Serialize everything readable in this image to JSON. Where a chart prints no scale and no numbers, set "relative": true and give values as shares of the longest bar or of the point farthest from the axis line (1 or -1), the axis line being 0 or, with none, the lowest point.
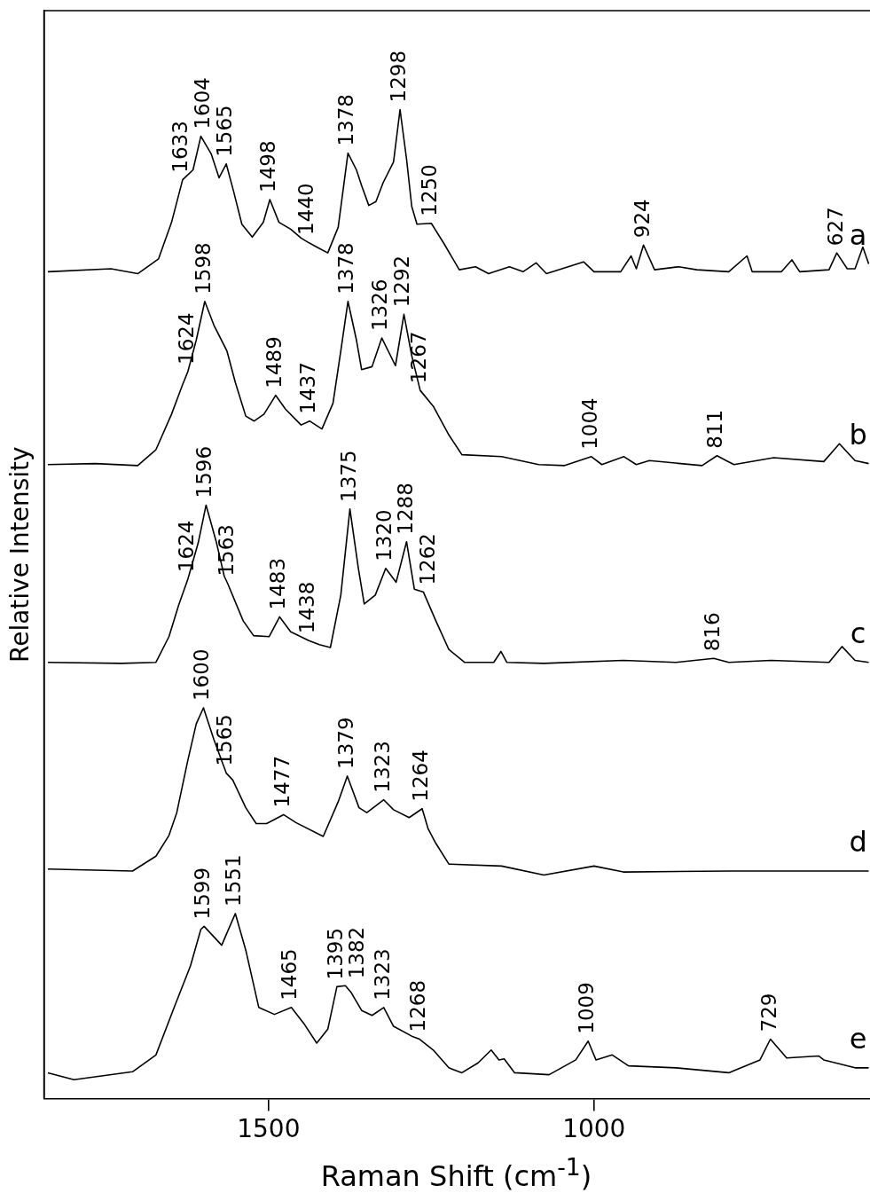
{
  "chart_data": {
    "type": "line",
    "xlabel": "Raman Shift (cm$^{-1}$)",
    "ylabel": "Relative Intensity",
    "relative": true,
    "xlim": [
      1845,
      576
    ],
    "xticks": [
      1500,
      1000
    ],
    "series": [
      {
        "name": "a",
        "color": "#000000",
        "x": [
          1839,
          1742,
          1701,
          1669,
          1649,
          1632,
          1616,
          1604,
          1588,
          1576,
          1565,
          1554,
          1541,
          1525,
          1508,
          1498,
          1484,
          1466,
          1450,
          1440,
          1426,
          1409,
          1393,
          1378,
          1365,
          1357,
          1346,
          1335,
          1324,
          1308,
          1298,
          1288,
          1280,
          1272,
          1250,
          1231,
          1207,
          1182,
          1162,
          1130,
          1109,
          1089,
          1073,
          1016,
          1000,
          959,
          943,
          935,
          924,
          907,
          870,
          842,
          793,
          765,
          757,
          712,
          696,
          684,
          639,
          627,
          611,
          599,
          587,
          578
        ],
        "values": [
          0.836,
          0.839,
          0.834,
          0.849,
          0.886,
          0.929,
          0.939,
          0.973,
          0.955,
          0.931,
          0.945,
          0.918,
          0.884,
          0.871,
          0.886,
          0.909,
          0.886,
          0.879,
          0.87,
          0.866,
          0.861,
          0.855,
          0.881,
          0.956,
          0.939,
          0.923,
          0.903,
          0.907,
          0.926,
          0.947,
          1.0,
          0.95,
          0.902,
          0.884,
          0.885,
          0.865,
          0.838,
          0.841,
          0.834,
          0.841,
          0.836,
          0.845,
          0.834,
          0.846,
          0.836,
          0.836,
          0.852,
          0.839,
          0.863,
          0.838,
          0.841,
          0.838,
          0.836,
          0.852,
          0.836,
          0.836,
          0.848,
          0.836,
          0.838,
          0.855,
          0.839,
          0.839,
          0.861,
          0.844
        ]
      },
      {
        "name": "b",
        "color": "#000000",
        "x": [
          1839,
          1766,
          1701,
          1673,
          1649,
          1632,
          1624,
          1611,
          1598,
          1584,
          1564,
          1551,
          1535,
          1522,
          1507,
          1489,
          1474,
          1450,
          1437,
          1418,
          1401,
          1389,
          1378,
          1365,
          1357,
          1341,
          1326,
          1305,
          1292,
          1280,
          1267,
          1247,
          1223,
          1203,
          1142,
          1085,
          1045,
          1004,
          988,
          954,
          935,
          915,
          834,
          811,
          797,
          785,
          724,
          647,
          623,
          599,
          578
        ],
        "values": [
          0.641,
          0.642,
          0.64,
          0.656,
          0.692,
          0.722,
          0.735,
          0.767,
          0.806,
          0.782,
          0.756,
          0.724,
          0.69,
          0.685,
          0.692,
          0.711,
          0.697,
          0.681,
          0.685,
          0.677,
          0.703,
          0.756,
          0.806,
          0.767,
          0.737,
          0.74,
          0.769,
          0.741,
          0.793,
          0.751,
          0.716,
          0.7,
          0.671,
          0.651,
          0.649,
          0.641,
          0.64,
          0.649,
          0.641,
          0.649,
          0.641,
          0.645,
          0.64,
          0.65,
          0.645,
          0.641,
          0.648,
          0.644,
          0.662,
          0.645,
          0.642
        ]
      },
      {
        "name": "c",
        "color": "#000000",
        "x": [
          1839,
          1726,
          1673,
          1653,
          1638,
          1624,
          1608,
          1596,
          1580,
          1568,
          1563,
          1539,
          1523,
          1499,
          1483,
          1466,
          1438,
          1422,
          1405,
          1389,
          1375,
          1362,
          1353,
          1336,
          1320,
          1304,
          1288,
          1276,
          1262,
          1243,
          1223,
          1199,
          1154,
          1143,
          1134,
          1077,
          955,
          874,
          816,
          793,
          728,
          639,
          619,
          599,
          578
        ],
        "values": [
          0.441,
          0.44,
          0.441,
          0.467,
          0.499,
          0.525,
          0.562,
          0.6,
          0.562,
          0.528,
          0.521,
          0.483,
          0.468,
          0.467,
          0.487,
          0.472,
          0.463,
          0.459,
          0.456,
          0.509,
          0.596,
          0.536,
          0.5,
          0.509,
          0.536,
          0.522,
          0.563,
          0.515,
          0.512,
          0.483,
          0.454,
          0.441,
          0.441,
          0.452,
          0.441,
          0.44,
          0.443,
          0.441,
          0.445,
          0.441,
          0.443,
          0.441,
          0.457,
          0.443,
          0.441
        ]
      },
      {
        "name": "d",
        "color": "#000000",
        "x": [
          1839,
          1709,
          1673,
          1653,
          1641,
          1624,
          1611,
          1600,
          1584,
          1565,
          1555,
          1535,
          1519,
          1503,
          1477,
          1458,
          1416,
          1393,
          1379,
          1361,
          1349,
          1323,
          1308,
          1284,
          1264,
          1255,
          1243,
          1223,
          1142,
          1077,
          1000,
          955,
          793,
          578
        ],
        "values": [
          0.232,
          0.23,
          0.245,
          0.266,
          0.289,
          0.342,
          0.379,
          0.395,
          0.363,
          0.329,
          0.322,
          0.294,
          0.278,
          0.278,
          0.287,
          0.279,
          0.265,
          0.3,
          0.326,
          0.294,
          0.289,
          0.302,
          0.292,
          0.284,
          0.293,
          0.273,
          0.258,
          0.237,
          0.235,
          0.226,
          0.235,
          0.229,
          0.23,
          0.23
        ]
      },
      {
        "name": "e",
        "color": "#000000",
        "x": [
          1839,
          1799,
          1709,
          1673,
          1645,
          1620,
          1604,
          1599,
          1572,
          1551,
          1535,
          1515,
          1491,
          1465,
          1446,
          1426,
          1409,
          1395,
          1382,
          1373,
          1357,
          1341,
          1323,
          1308,
          1280,
          1268,
          1247,
          1223,
          1203,
          1178,
          1158,
          1146,
          1138,
          1122,
          1069,
          1028,
          1009,
          997,
          972,
          947,
          874,
          793,
          745,
          729,
          704,
          655,
          647,
          599,
          578
        ],
        "values": [
          0.026,
          0.019,
          0.027,
          0.044,
          0.092,
          0.134,
          0.171,
          0.174,
          0.155,
          0.187,
          0.15,
          0.092,
          0.085,
          0.092,
          0.076,
          0.056,
          0.07,
          0.113,
          0.114,
          0.107,
          0.089,
          0.084,
          0.092,
          0.073,
          0.063,
          0.06,
          0.049,
          0.031,
          0.026,
          0.036,
          0.049,
          0.039,
          0.04,
          0.026,
          0.024,
          0.039,
          0.058,
          0.039,
          0.044,
          0.033,
          0.031,
          0.026,
          0.039,
          0.06,
          0.041,
          0.043,
          0.039,
          0.031,
          0.031
        ]
      }
    ],
    "annotations": [
      {
        "text": "1633",
        "x": 1633,
        "y": 0.929
      },
      {
        "text": "1604",
        "x": 1604,
        "y": 0.973
      },
      {
        "text": "1565",
        "x": 1565,
        "y": 0.945
      },
      {
        "text": "1498",
        "x": 1498,
        "y": 0.909
      },
      {
        "text": "1440",
        "x": 1440,
        "y": 0.866
      },
      {
        "text": "1378",
        "x": 1378,
        "y": 0.956
      },
      {
        "text": "1298",
        "x": 1298,
        "y": 1.0
      },
      {
        "text": "1250",
        "x": 1250,
        "y": 0.885
      },
      {
        "text": "924",
        "x": 924,
        "y": 0.863
      },
      {
        "text": "627",
        "x": 627,
        "y": 0.855
      },
      {
        "text": "1624",
        "x": 1624,
        "y": 0.735
      },
      {
        "text": "1598",
        "x": 1598,
        "y": 0.806
      },
      {
        "text": "1489",
        "x": 1489,
        "y": 0.711
      },
      {
        "text": "1437",
        "x": 1437,
        "y": 0.685
      },
      {
        "text": "1378",
        "x": 1378,
        "y": 0.806
      },
      {
        "text": "1326",
        "x": 1326,
        "y": 0.769
      },
      {
        "text": "1292",
        "x": 1292,
        "y": 0.793
      },
      {
        "text": "1267",
        "x": 1267,
        "y": 0.716
      },
      {
        "text": "1004",
        "x": 1004,
        "y": 0.649
      },
      {
        "text": "811",
        "x": 811,
        "y": 0.65
      },
      {
        "text": "1624",
        "x": 1624,
        "y": 0.525
      },
      {
        "text": "1596",
        "x": 1596,
        "y": 0.6
      },
      {
        "text": "1563",
        "x": 1563,
        "y": 0.521
      },
      {
        "text": "1483",
        "x": 1483,
        "y": 0.487
      },
      {
        "text": "1438",
        "x": 1438,
        "y": 0.463
      },
      {
        "text": "1375",
        "x": 1375,
        "y": 0.596
      },
      {
        "text": "1320",
        "x": 1320,
        "y": 0.536
      },
      {
        "text": "1288",
        "x": 1288,
        "y": 0.563
      },
      {
        "text": "1262",
        "x": 1262,
        "y": 0.512
      },
      {
        "text": "816",
        "x": 816,
        "y": 0.445
      },
      {
        "text": "1600",
        "x": 1600,
        "y": 0.395
      },
      {
        "text": "1565",
        "x": 1565,
        "y": 0.329
      },
      {
        "text": "1477",
        "x": 1477,
        "y": 0.287
      },
      {
        "text": "1379",
        "x": 1379,
        "y": 0.326
      },
      {
        "text": "1323",
        "x": 1323,
        "y": 0.302
      },
      {
        "text": "1264",
        "x": 1264,
        "y": 0.293
      },
      {
        "text": "1599",
        "x": 1599,
        "y": 0.174
      },
      {
        "text": "1551",
        "x": 1551,
        "y": 0.187
      },
      {
        "text": "1465",
        "x": 1465,
        "y": 0.092
      },
      {
        "text": "1395",
        "x": 1395,
        "y": 0.113
      },
      {
        "text": "1382",
        "x": 1382,
        "y": 0.114
      },
      {
        "text": "1323",
        "x": 1323,
        "y": 0.092
      },
      {
        "text": "1268",
        "x": 1268,
        "y": 0.06
      },
      {
        "text": "1009",
        "x": 1009,
        "y": 0.058
      },
      {
        "text": "729",
        "x": 729,
        "y": 0.06
      }
    ]
  }
}
